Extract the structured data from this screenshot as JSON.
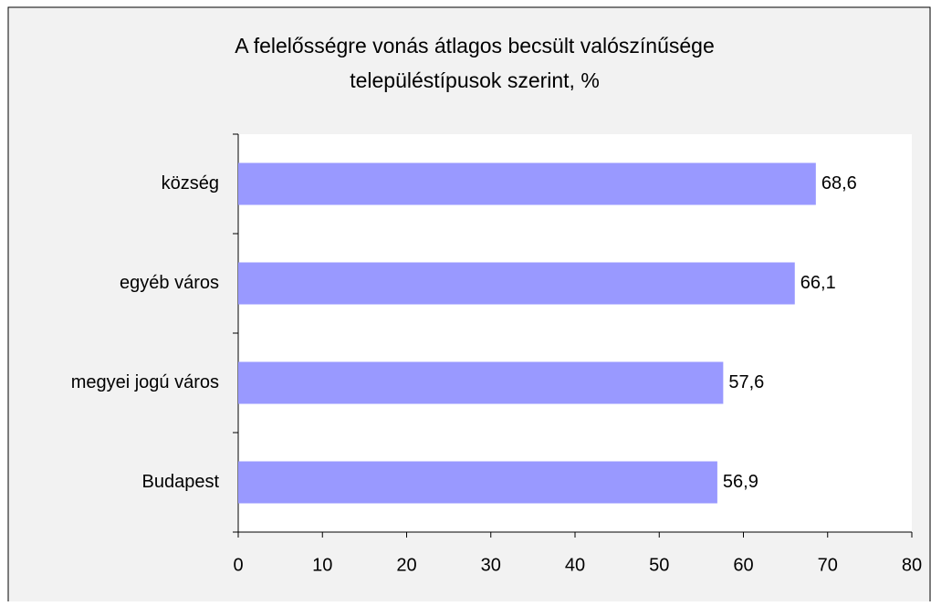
{
  "chart_data": {
    "type": "barh",
    "title": [
      "A felelősségre vonás átlagos becsült valószínűsége",
      "településtípusok szerint, %"
    ],
    "categories": [
      "község",
      "egyéb város",
      "megyei jogú város",
      "Budapest"
    ],
    "values": [
      68.6,
      66.1,
      57.6,
      56.9
    ],
    "value_labels": [
      "68,6",
      "66,1",
      "57,6",
      "56,9"
    ],
    "color": "#9999ff",
    "xlim": [
      0,
      80
    ],
    "xticks": [
      0,
      10,
      20,
      30,
      40,
      50,
      60,
      70,
      80
    ]
  }
}
